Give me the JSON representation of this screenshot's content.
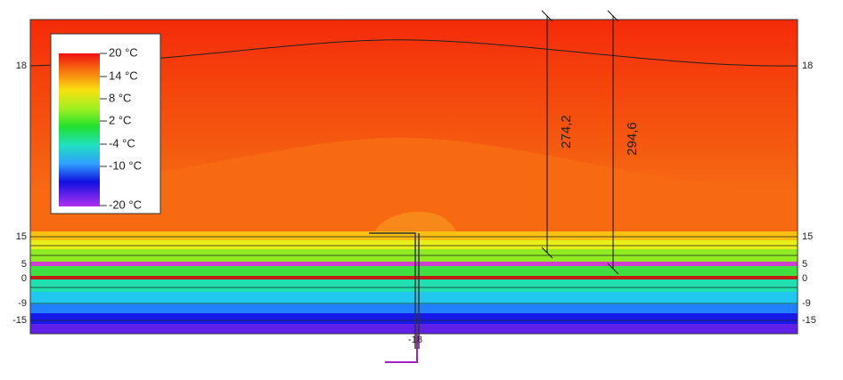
{
  "legend": {
    "labels": [
      "20 °C",
      "14 °C",
      "8 °C",
      "2 °C",
      "-4 °C",
      "-10 °C",
      "-20 °C"
    ]
  },
  "isotherms": {
    "left": [
      "18",
      "15",
      "5",
      "0",
      "-9",
      "-15"
    ],
    "right": [
      "18",
      "15",
      "5",
      "0",
      "-9",
      "-15"
    ],
    "bottom": "-18"
  },
  "dimensions": [
    "274,2",
    "294,6"
  ]
}
